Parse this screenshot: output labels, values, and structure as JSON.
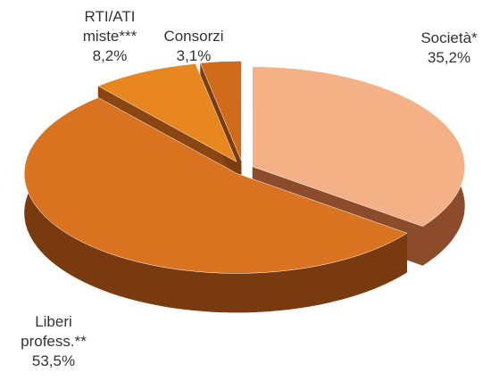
{
  "chart_data": {
    "type": "pie",
    "categories": [
      "Società*",
      "Liberi profess.**",
      "RTI/ATI miste***",
      "Consorzi"
    ],
    "values": [
      35.2,
      53.5,
      8.2,
      3.1
    ],
    "value_labels": [
      "35,2%",
      "53,5%",
      "8,2%",
      "3,1%"
    ],
    "colors": [
      "#f4b185",
      "#d9731f",
      "#e8861f",
      "#d06b1c"
    ]
  }
}
